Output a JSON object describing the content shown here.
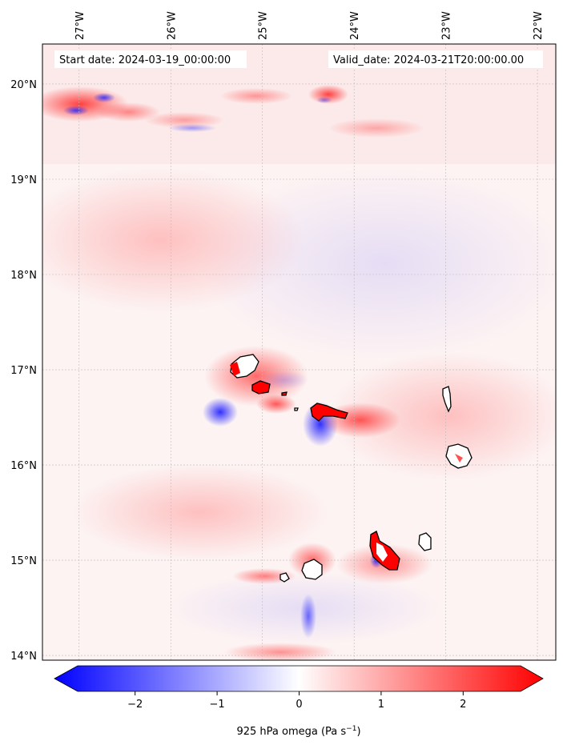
{
  "map": {
    "header": {
      "start_label": "Start date: 2024-03-19_00:00:00",
      "valid_label": "Valid_date: 2024-03-21T20:00:00.00"
    },
    "lon_ticks": [
      "27°W",
      "26°W",
      "25°W",
      "24°W",
      "23°W",
      "22°W"
    ],
    "lat_ticks": [
      "20°N",
      "19°N",
      "18°N",
      "17°N",
      "16°N",
      "15°N",
      "14°N"
    ],
    "extent": {
      "lon_min": -27.4,
      "lon_max": -21.8,
      "lat_min": 13.95,
      "lat_max": 20.42
    },
    "colormap": "bwr",
    "colors": {
      "negative": "#0000ff",
      "zero": "#ffffff",
      "positive": "#ff0000",
      "coastline": "#000000",
      "grid": "#bbbbbb"
    },
    "gridlines": true,
    "islands": [
      "Santo Antão",
      "São Vicente",
      "Santa Luzia",
      "São Nicolau",
      "Sal",
      "Boa Vista",
      "Brava",
      "Fogo",
      "Santiago",
      "Maio"
    ]
  },
  "colorbar": {
    "ticks": [
      "−2",
      "−1",
      "0",
      "1",
      "2"
    ],
    "range": [
      -2.7,
      2.7
    ],
    "extend": "both",
    "label_main": "925 hPa omega (Pa s",
    "label_sup": "−1",
    "label_end": ")"
  }
}
